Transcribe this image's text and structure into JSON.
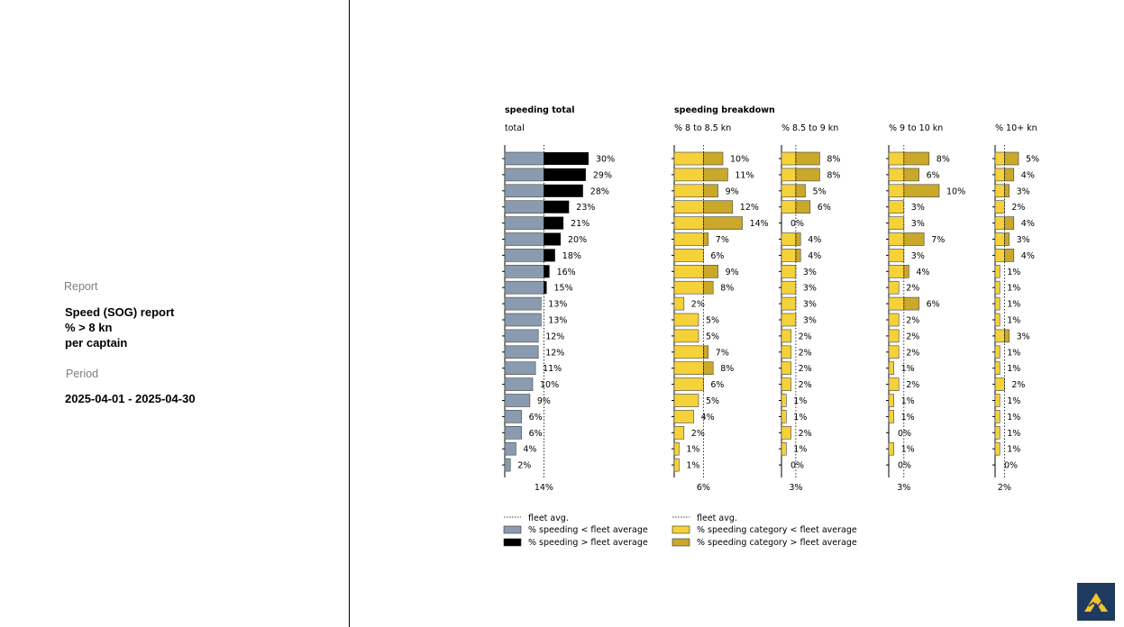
{
  "sidebar": {
    "report_heading": "Report",
    "report_title_lines": [
      "Speed (SOG) report",
      "% > 8 kn",
      "per captain"
    ],
    "period_heading": "Period",
    "period_value": "2025-04-01 - 2025-04-30"
  },
  "colors": {
    "below_total": "#8a9bb0",
    "above_total": "#000000",
    "below_category": "#f5d13a",
    "above_category": "#c9a82a",
    "logo_bg": "#1e3a5f",
    "logo_mark": "#f2c230"
  },
  "chart_data": [
    {
      "type": "bar",
      "orientation": "horizontal",
      "group_title": "speeding total",
      "title": "total",
      "values": [
        30,
        29,
        28,
        23,
        21,
        20,
        18,
        16,
        15,
        13,
        13,
        12,
        12,
        11,
        10,
        9,
        6,
        6,
        4,
        2
      ],
      "value_suffix": "%",
      "fleet_avg": 14,
      "fleet_avg_label": "14%"
    },
    {
      "type": "bar",
      "orientation": "horizontal",
      "group_title": "speeding breakdown",
      "title": "% 8 to 8.5 kn",
      "values": [
        10,
        11,
        9,
        12,
        14,
        7,
        6,
        9,
        8,
        2,
        5,
        5,
        7,
        8,
        6,
        5,
        4,
        2,
        1,
        1
      ],
      "value_suffix": "%",
      "fleet_avg": 6,
      "fleet_avg_label": "6%"
    },
    {
      "type": "bar",
      "orientation": "horizontal",
      "title": "% 8.5 to 9 kn",
      "values": [
        8,
        8,
        5,
        6,
        0,
        4,
        4,
        3,
        3,
        3,
        3,
        2,
        2,
        2,
        2,
        1,
        1,
        2,
        1,
        0
      ],
      "value_suffix": "%",
      "fleet_avg": 3,
      "fleet_avg_label": "3%"
    },
    {
      "type": "bar",
      "orientation": "horizontal",
      "title": "% 9 to 10 kn",
      "values": [
        8,
        6,
        10,
        3,
        3,
        7,
        3,
        4,
        2,
        6,
        2,
        2,
        2,
        1,
        2,
        1,
        1,
        0,
        1,
        0
      ],
      "value_suffix": "%",
      "fleet_avg": 3,
      "fleet_avg_label": "3%"
    },
    {
      "type": "bar",
      "orientation": "horizontal",
      "title": "% 10+ kn",
      "values": [
        5,
        4,
        3,
        2,
        4,
        3,
        4,
        1,
        1,
        1,
        1,
        3,
        1,
        1,
        2,
        1,
        1,
        1,
        1,
        0
      ],
      "value_suffix": "%",
      "fleet_avg": 2,
      "fleet_avg_label": "2%"
    }
  ],
  "legend": {
    "left": {
      "avg": "fleet avg.",
      "below": "% speeding < fleet average",
      "above": "% speeding > fleet average"
    },
    "right": {
      "avg": "fleet avg.",
      "below": "% speeding category < fleet average",
      "above": "% speeding category > fleet average"
    }
  }
}
